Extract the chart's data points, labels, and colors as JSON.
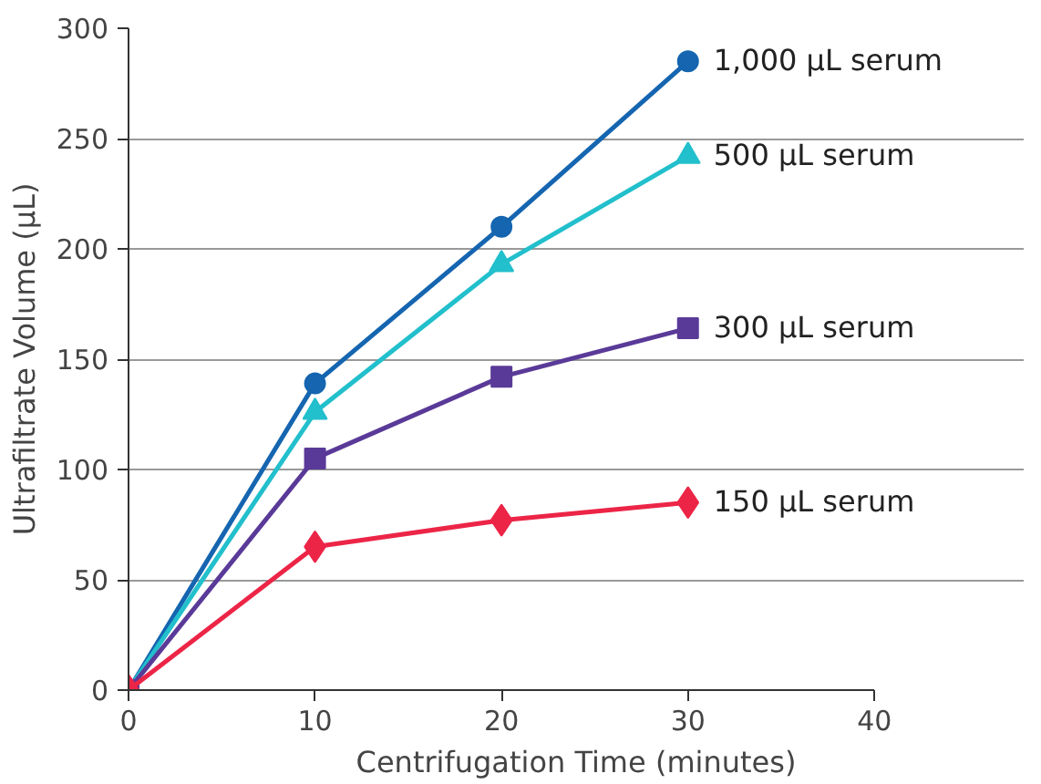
{
  "chart_data": {
    "type": "line",
    "xlabel": "Centrifugation Time (minutes)",
    "ylabel": "Ultrafiltrate Volume (µL)",
    "x": [
      0,
      10,
      20,
      30
    ],
    "xlim": [
      0,
      40
    ],
    "xticks": [
      0,
      10,
      20,
      30,
      40
    ],
    "ylim": [
      0,
      300
    ],
    "yticks": [
      0,
      50,
      100,
      150,
      200,
      250,
      300
    ],
    "grid": "y",
    "legend": false,
    "series": [
      {
        "name": "1,000 µL serum",
        "color": "#1565b0",
        "marker": "circle",
        "values": [
          0,
          139,
          210,
          285
        ]
      },
      {
        "name": "500 µL serum",
        "color": "#22bfcc",
        "marker": "triangle",
        "values": [
          0,
          126,
          193,
          242
        ]
      },
      {
        "name": "300 µL serum",
        "color": "#5a3a98",
        "marker": "square",
        "values": [
          0,
          105,
          142,
          164
        ]
      },
      {
        "name": "150 µL serum",
        "color": "#ec2547",
        "marker": "diamond",
        "values": [
          0,
          65,
          77,
          85
        ]
      }
    ]
  }
}
